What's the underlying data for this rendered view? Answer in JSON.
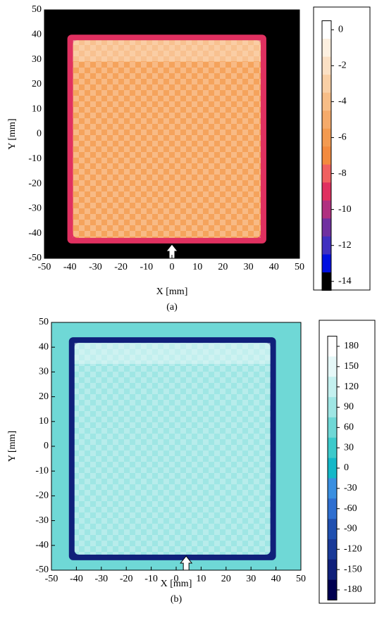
{
  "chart_data": [
    {
      "type": "heatmap",
      "caption": "(a)",
      "xlabel": "X [mm]",
      "ylabel": "Y [mm]",
      "xlim": [
        -50,
        50
      ],
      "ylim": [
        -50,
        50
      ],
      "xticks": [
        -50,
        -40,
        -30,
        -20,
        -10,
        0,
        10,
        20,
        30,
        40,
        50
      ],
      "yticks": [
        -50,
        -40,
        -30,
        -20,
        -10,
        0,
        10,
        20,
        30,
        40,
        50
      ],
      "background_color": "#000000",
      "plate_color": "#f5a35c",
      "plate_light": "#fbe0c4",
      "edge_color": "#e03060",
      "plate": {
        "x": [
          -41,
          37
        ],
        "y": [
          -44,
          40
        ]
      },
      "arrow_x": 0,
      "colorbar": {
        "lim": [
          -14.5,
          0.5
        ],
        "ticks": [
          0,
          -2,
          -4,
          -6,
          -8,
          -10,
          -12,
          -14
        ],
        "colors": [
          "#ffffff",
          "#fdf0e0",
          "#fbe0c4",
          "#f9cfa5",
          "#f7bd87",
          "#f5aa6a",
          "#f39a50",
          "#f38a3e",
          "#f06060",
          "#e03060",
          "#b03080",
          "#7030a0",
          "#4030c0",
          "#0010e0",
          "#000000"
        ]
      }
    },
    {
      "type": "heatmap",
      "caption": "(b)",
      "xlabel": "X [mm]",
      "ylabel": "Y [mm]",
      "xlim": [
        -50,
        50
      ],
      "ylim": [
        -50,
        50
      ],
      "xticks": [
        -50,
        -40,
        -30,
        -20,
        -10,
        0,
        10,
        20,
        30,
        40,
        50
      ],
      "yticks": [
        -50,
        -40,
        -30,
        -20,
        -10,
        0,
        10,
        20,
        30,
        40,
        50
      ],
      "background_color": "#6fd8d6",
      "plate_color": "#9fe6e4",
      "plate_light": "#e6f8f8",
      "edge_color": "#10207a",
      "plate": {
        "x": [
          -43,
          40
        ],
        "y": [
          -46,
          44
        ]
      },
      "arrow_x": 4,
      "colorbar": {
        "lim": [
          -195,
          195
        ],
        "ticks": [
          180,
          150,
          120,
          90,
          60,
          30,
          0,
          -30,
          -60,
          -90,
          -120,
          -150,
          -180
        ],
        "colors": [
          "#ffffff",
          "#e6f8f8",
          "#c4f0ef",
          "#9fe6e4",
          "#6fd8d6",
          "#3ccacb",
          "#14b8c8",
          "#3a8fe0",
          "#2f6fd0",
          "#2050b0",
          "#1a3a98",
          "#10207a",
          "#000050"
        ]
      }
    }
  ]
}
